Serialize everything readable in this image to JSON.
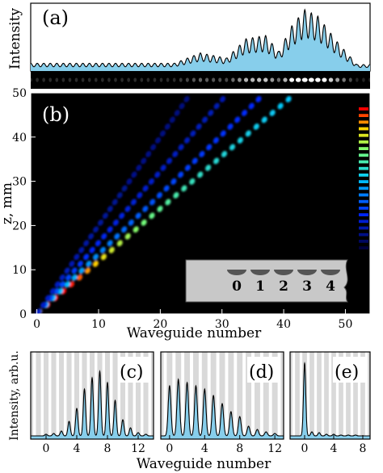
{
  "chart_data": [
    {
      "panel": "(a)",
      "type": "area",
      "ylabel": "Intensity",
      "x_range": [
        0,
        52
      ],
      "fill_color": "#87ceeb",
      "envelope": [
        {
          "x": 22,
          "y": 0.12
        },
        {
          "x": 26,
          "y": 0.28
        },
        {
          "x": 30,
          "y": 0.2
        },
        {
          "x": 33,
          "y": 0.5
        },
        {
          "x": 36,
          "y": 0.55
        },
        {
          "x": 38,
          "y": 0.3
        },
        {
          "x": 40,
          "y": 0.7
        },
        {
          "x": 42,
          "y": 0.95
        },
        {
          "x": 44,
          "y": 0.85
        },
        {
          "x": 47,
          "y": 0.45
        },
        {
          "x": 50,
          "y": 0.1
        }
      ]
    },
    {
      "panel": "(b)",
      "type": "heatmap",
      "xlabel": "Waveguide number",
      "ylabel": "z, mm",
      "xlim": [
        -1,
        54
      ],
      "ylim": [
        0,
        50
      ],
      "xticks": [
        "0",
        "10",
        "20",
        "30",
        "40",
        "50"
      ],
      "yticks": [
        "0",
        "10",
        "20",
        "30",
        "40",
        "50"
      ],
      "beams": [
        {
          "x0": 0,
          "x1": 42,
          "strength": 1.0
        },
        {
          "x0": 0,
          "x1": 37,
          "strength": 0.55
        },
        {
          "x0": 0,
          "x1": 31,
          "strength": 0.35
        },
        {
          "x0": 0,
          "x1": 25,
          "strength": 0.2
        }
      ],
      "colorbar": [
        "#ff0000",
        "#ff9900",
        "#ffff00",
        "#00ff88",
        "#00ccff",
        "#0000ff"
      ],
      "inset_labels": [
        "0",
        "1",
        "2",
        "3",
        "4"
      ]
    },
    {
      "panel": "(c)",
      "type": "area",
      "ylabel": "Intensity, arb.u.",
      "xlim": [
        -2,
        14
      ],
      "xticks": [
        "0",
        "4",
        "8",
        "12"
      ],
      "peaks": [
        {
          "x": 0,
          "y": 0.02
        },
        {
          "x": 1,
          "y": 0.03
        },
        {
          "x": 2,
          "y": 0.06
        },
        {
          "x": 3,
          "y": 0.18
        },
        {
          "x": 4,
          "y": 0.34
        },
        {
          "x": 5,
          "y": 0.58
        },
        {
          "x": 6,
          "y": 0.72
        },
        {
          "x": 7,
          "y": 0.8
        },
        {
          "x": 8,
          "y": 0.66
        },
        {
          "x": 9,
          "y": 0.44
        },
        {
          "x": 10,
          "y": 0.2
        },
        {
          "x": 11,
          "y": 0.1
        },
        {
          "x": 12,
          "y": 0.04
        },
        {
          "x": 13,
          "y": 0.02
        }
      ]
    },
    {
      "panel": "(d)",
      "type": "area",
      "xlim": [
        -1,
        13
      ],
      "xticks": [
        "0",
        "4",
        "8",
        "12"
      ],
      "peaks": [
        {
          "x": 0,
          "y": 0.62
        },
        {
          "x": 1,
          "y": 0.7
        },
        {
          "x": 2,
          "y": 0.66
        },
        {
          "x": 3,
          "y": 0.62
        },
        {
          "x": 4,
          "y": 0.58
        },
        {
          "x": 5,
          "y": 0.5
        },
        {
          "x": 6,
          "y": 0.4
        },
        {
          "x": 7,
          "y": 0.3
        },
        {
          "x": 8,
          "y": 0.24
        },
        {
          "x": 9,
          "y": 0.12
        },
        {
          "x": 10,
          "y": 0.08
        },
        {
          "x": 11,
          "y": 0.05
        },
        {
          "x": 12,
          "y": 0.03
        }
      ]
    },
    {
      "panel": "(e)",
      "type": "area",
      "xlim": [
        -2,
        9
      ],
      "xticks": [
        "0",
        "4",
        "8"
      ],
      "peaks": [
        {
          "x": 0,
          "y": 0.9
        },
        {
          "x": 1,
          "y": 0.05
        },
        {
          "x": 2,
          "y": 0.04
        },
        {
          "x": 3,
          "y": 0.02
        },
        {
          "x": 4,
          "y": 0.02
        },
        {
          "x": 5,
          "y": 0.01
        },
        {
          "x": 6,
          "y": 0.01
        },
        {
          "x": 7,
          "y": 0.01
        }
      ]
    }
  ],
  "bottom_xlabel": "Waveguide number"
}
